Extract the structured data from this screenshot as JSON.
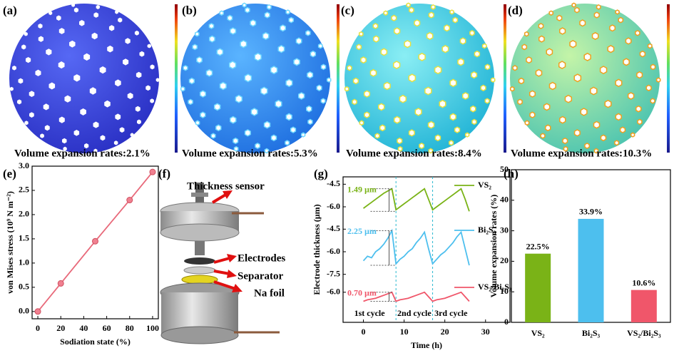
{
  "panel_labels": [
    "(a)",
    "(b)",
    "(c)",
    "(d)",
    "(e)",
    "(f)",
    "(g)",
    "(h)"
  ],
  "spheres": [
    {
      "caption": "Volume expansion rates:2.1%"
    },
    {
      "caption": "Volume expansion rates:5.3%"
    },
    {
      "caption": "Volume expansion rates:8.4%"
    },
    {
      "caption": "Volume expansion rates:10.3%"
    }
  ],
  "diagram": {
    "labels": [
      "Thickness sensor",
      "Electrodes",
      "Separator",
      "Na foil"
    ]
  },
  "chart_data": [
    {
      "type": "line",
      "x": [
        0,
        20,
        50,
        80,
        100
      ],
      "values": [
        0,
        0.58,
        1.45,
        2.3,
        2.88
      ],
      "color": "#e8697a",
      "xlabel": "Sodiation state (%)",
      "ylabel": "von Mises stress (10⁹ N m⁻²)",
      "xlim": [
        -5,
        105
      ],
      "ylim": [
        -0.15,
        3.0
      ],
      "xticks": [
        0,
        20,
        40,
        60,
        80,
        100
      ],
      "yticks": [
        {
          "value": 0,
          "label": "0.0"
        },
        0.5,
        {
          "value": 1,
          "label": "1.0"
        },
        1.5,
        {
          "value": 2,
          "label": "2.0"
        },
        2.5,
        {
          "value": 3,
          "label": "3.0"
        }
      ]
    },
    {
      "type": "line",
      "xlabel": "Time (h)",
      "ylabel": "Electrode thickness (µm)",
      "xlim": [
        -5,
        36
      ],
      "xticks": [
        0,
        10,
        20,
        30
      ],
      "x": [
        0,
        1,
        2,
        3,
        4,
        5,
        6,
        7,
        8,
        9,
        10,
        11,
        12,
        13,
        14,
        15,
        16,
        17,
        18,
        19,
        20,
        21,
        22,
        23,
        24,
        25,
        26
      ],
      "cycle_lines": [
        8,
        17
      ],
      "cycle_labels": [
        "1st cycle",
        "2nd cycle",
        "3rd cycle"
      ],
      "series": [
        {
          "name": "VS₂",
          "color": "#7ab317",
          "annotation": "1.49 µm",
          "ylim": [
            -6.9,
            -4.2
          ],
          "yticks": [
            -4.5,
            {
              "value": -6,
              "label": "-6.0"
            }
          ],
          "values": [
            -6.1,
            -5.9,
            -5.7,
            -5.5,
            -5.3,
            -5.1,
            -4.95,
            -4.8,
            -6.2,
            -6.0,
            -5.8,
            -5.6,
            -5.4,
            -5.2,
            -5.0,
            -4.8,
            -5.5,
            -6.2,
            -6.0,
            -5.8,
            -5.6,
            -5.4,
            -5.2,
            -5.0,
            -4.8,
            -5.5,
            -6.3
          ]
        },
        {
          "name": "Bi₂S₃",
          "color": "#4dbfee",
          "annotation": "2.25 µm",
          "ylim": [
            -7.8,
            -4.2
          ],
          "yticks": [
            -4.5,
            {
              "value": -6,
              "label": "-6.0"
            },
            -7.5
          ],
          "values": [
            -6.6,
            -6.3,
            -6.4,
            -6.0,
            -5.8,
            -5.5,
            -5.1,
            -4.6,
            -6.8,
            -6.5,
            -6.3,
            -6.0,
            -5.8,
            -5.4,
            -5.1,
            -4.7,
            -5.8,
            -6.8,
            -6.5,
            -6.2,
            -6.0,
            -5.7,
            -5.4,
            -5.0,
            -4.7,
            -5.8,
            -6.9
          ]
        },
        {
          "name": "VS₂/Bi₂S₃",
          "color": "#f0566a",
          "annotation": "0.70 µm",
          "ylim": [
            -7.9,
            -5.3
          ],
          "yticks": [
            {
              "value": -6,
              "label": "-6.0"
            }
          ],
          "values": [
            -6.6,
            -6.5,
            -6.45,
            -6.4,
            -6.3,
            -6.2,
            -6.1,
            -6.0,
            -6.6,
            -6.5,
            -6.45,
            -6.4,
            -6.3,
            -6.2,
            -6.1,
            -6.0,
            -6.3,
            -6.6,
            -6.5,
            -6.45,
            -6.4,
            -6.3,
            -6.2,
            -6.1,
            -6.0,
            -6.3,
            -6.6
          ]
        }
      ]
    },
    {
      "type": "bar",
      "categories": [
        "VS₂",
        "Bi₂S₃",
        "VS₂/Bi₂S₃"
      ],
      "values": [
        22.5,
        33.9,
        10.6
      ],
      "value_labels": [
        "22.5%",
        "33.9%",
        "10.6%"
      ],
      "colors": [
        "#7ab317",
        "#4dbfee",
        "#f0566a"
      ],
      "ylabel": "Volume expansion rates (%)",
      "ylim": [
        0,
        50
      ],
      "yticks": [
        0,
        10,
        20,
        30,
        40,
        50
      ]
    }
  ]
}
